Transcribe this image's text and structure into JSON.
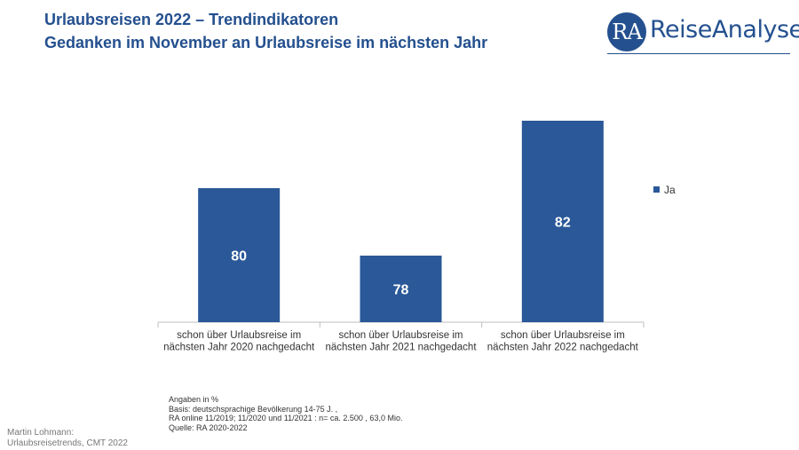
{
  "header": {
    "title_line1": "Urlaubsreisen 2022 – Trendindikatoren",
    "title_line2": "Gedanken im November an Urlaubsreise im nächsten Jahr"
  },
  "logo": {
    "mark": "RA",
    "text": "ReiseAnalyse"
  },
  "colors": {
    "title": "#24508f",
    "bar": "#2a5898",
    "axis": "#bfbfbf"
  },
  "chart_data": {
    "type": "bar",
    "categories": [
      [
        "schon über Urlaubsreise im",
        "nächsten Jahr 2020 nachgedacht"
      ],
      [
        "schon über Urlaubsreise im",
        "nächsten Jahr 2021 nachgedacht"
      ],
      [
        "schon über Urlaubsreise im",
        "nächsten Jahr 2022 nachgedacht"
      ]
    ],
    "series": [
      {
        "name": "Ja",
        "values": [
          80,
          78,
          82
        ]
      }
    ],
    "legend_position": "right"
  },
  "footnote": [
    "Angaben in %",
    "Basis: deutschsprachige Bevölkerung 14-75 J. ,",
    "RA online 11/2019; 11/2020 und 11/2021 : n= ca. 2.500 , 63,0 Mio.",
    "Quelle: RA 2020-2022"
  ],
  "author": [
    "Martin Lohmann:",
    "Urlaubsreisetrends, CMT 2022"
  ]
}
